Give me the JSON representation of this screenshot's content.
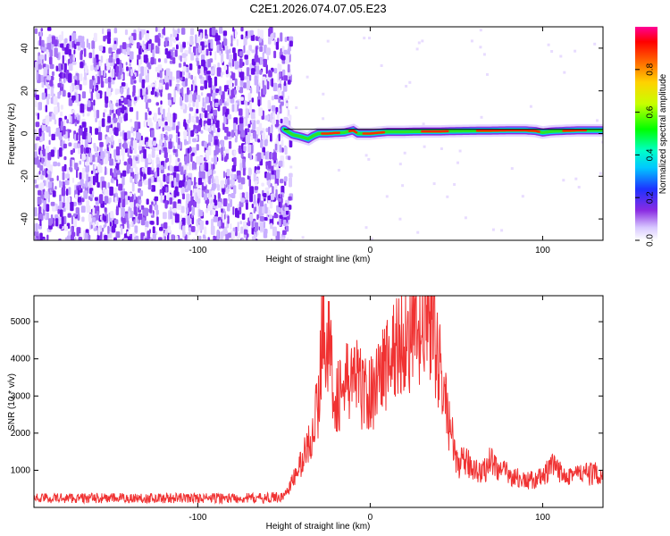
{
  "title": "C2E1.2026.074.07.05.E23",
  "colors": {
    "snr_line": "#f03232",
    "spectral_line": "#000000",
    "noise": "#7a1ef0",
    "axis": "#000000"
  },
  "chart_data": [
    {
      "type": "heatmap",
      "xlabel": "Height of straight line (km)",
      "ylabel": "Frequency (Hz)",
      "xlim": [
        -195,
        135
      ],
      "ylim": [
        -50,
        50
      ],
      "x_ticks": [
        -100,
        0,
        100
      ],
      "x_tick_labels": [
        "-100",
        "0",
        "100"
      ],
      "y_ticks": [
        -40,
        -20,
        0,
        20,
        40
      ],
      "y_tick_labels": [
        "-40",
        "-20",
        "0",
        "20",
        "40"
      ],
      "colorbar": {
        "label": "Normalized spectral amplitude",
        "range": [
          0,
          1
        ],
        "ticks": [
          0.0,
          0.2,
          0.4,
          0.6,
          0.8
        ],
        "tick_labels": [
          "0.0",
          "0.2",
          "0.4",
          "0.6",
          "0.8"
        ],
        "colormap": "rainbow (white, violet, blue, cyan, green, yellow, orange, red, magenta)"
      },
      "noise_region_x": [
        -195,
        -50
      ],
      "signal_track": {
        "x": [
          -50,
          -45,
          -40,
          -36,
          -33,
          -30,
          -25,
          -20,
          -15,
          -10,
          -7,
          -4,
          0,
          10,
          20,
          30,
          40,
          50,
          60,
          70,
          80,
          90,
          96,
          100,
          105,
          110,
          120,
          135
        ],
        "y": [
          2.0,
          -0.5,
          -1.5,
          -2.5,
          -1.0,
          0.0,
          0.0,
          0.3,
          0.5,
          1.5,
          0.0,
          0.0,
          0.0,
          0.8,
          0.8,
          1.0,
          1.0,
          1.2,
          1.3,
          1.4,
          1.5,
          1.5,
          1.2,
          0.5,
          1.0,
          1.2,
          1.5,
          1.5
        ]
      },
      "black_line": {
        "x": [
          -50,
          135
        ],
        "y": [
          2,
          2
        ]
      }
    },
    {
      "type": "line",
      "xlabel": "Height of straight line (km)",
      "ylabel": "SNR (10 * v/v)",
      "xlim": [
        -195,
        135
      ],
      "ylim": [
        0,
        5700
      ],
      "x_ticks": [
        -100,
        0,
        100
      ],
      "x_tick_labels": [
        "-100",
        "0",
        "100"
      ],
      "y_ticks": [
        1000,
        2000,
        3000,
        4000,
        5000
      ],
      "y_tick_labels": [
        "1000",
        "2000",
        "3000",
        "4000",
        "5000"
      ],
      "series": [
        {
          "color": "#f03232",
          "x": [
            -195,
            -150,
            -100,
            -60,
            -50,
            -45,
            -40,
            -35,
            -30,
            -27,
            -25,
            -20,
            -15,
            -10,
            -5,
            0,
            5,
            10,
            15,
            20,
            25,
            30,
            33,
            35,
            38,
            40,
            45,
            50,
            55,
            60,
            65,
            70,
            75,
            80,
            90,
            100,
            105,
            110,
            120,
            135
          ],
          "y": [
            250,
            250,
            250,
            250,
            300,
            700,
            1200,
            1800,
            2800,
            5500,
            4500,
            3000,
            3200,
            3600,
            3200,
            3000,
            3600,
            3900,
            4300,
            4600,
            4500,
            4600,
            5500,
            4900,
            4500,
            3800,
            2500,
            1200,
            1200,
            1100,
            900,
            1300,
            1000,
            900,
            700,
            800,
            1100,
            950,
            900,
            900
          ]
        }
      ]
    }
  ]
}
